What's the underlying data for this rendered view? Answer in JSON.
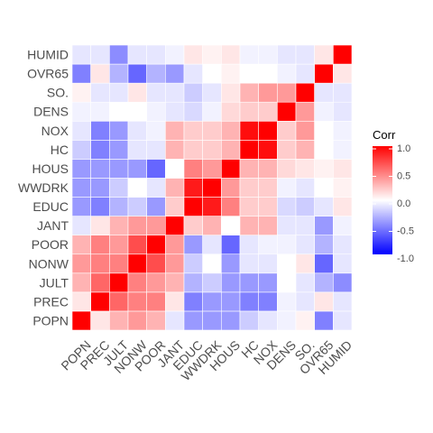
{
  "chart_data": {
    "type": "heatmap",
    "title": "",
    "xlabel": "",
    "ylabel": "",
    "variables": [
      "POPN",
      "PREC",
      "JULT",
      "NONW",
      "POOR",
      "JANT",
      "EDUC",
      "WWDRK",
      "HOUS",
      "HC",
      "NOX",
      "DENS",
      "SO.",
      "OVR65",
      "HUMID"
    ],
    "value_range": [
      -1,
      1
    ],
    "color_scale": {
      "low": "#0000ff",
      "mid": "#ffffff",
      "high": "#ff0000"
    },
    "grid": false,
    "legend": {
      "title": "Corr",
      "position": "right",
      "ticks": [
        "1.0",
        "0.5",
        "0.0",
        "-0.5",
        "-1.0"
      ]
    },
    "matrix": [
      [
        1.0,
        0.1,
        0.3,
        0.4,
        0.3,
        -0.1,
        -0.4,
        -0.4,
        -0.4,
        -0.2,
        -0.1,
        -0.05,
        0.05,
        -0.5,
        -0.1
      ],
      [
        0.1,
        1.0,
        0.6,
        0.5,
        0.5,
        0.1,
        -0.5,
        -0.4,
        -0.4,
        -0.5,
        -0.5,
        -0.05,
        -0.1,
        0.1,
        -0.1
      ],
      [
        0.3,
        0.6,
        1.0,
        0.5,
        0.4,
        0.3,
        -0.3,
        -0.2,
        -0.4,
        -0.4,
        -0.4,
        0.0,
        -0.1,
        -0.3,
        -0.45
      ],
      [
        0.4,
        0.5,
        0.5,
        1.0,
        0.7,
        0.4,
        -0.2,
        0.0,
        -0.4,
        -0.1,
        -0.1,
        0.0,
        0.1,
        -0.6,
        -0.1
      ],
      [
        0.3,
        0.5,
        0.4,
        0.7,
        1.0,
        0.4,
        -0.4,
        -0.1,
        -0.6,
        -0.1,
        -0.05,
        -0.05,
        -0.1,
        -0.3,
        -0.1
      ],
      [
        -0.1,
        0.1,
        0.3,
        0.4,
        0.4,
        1.0,
        0.2,
        0.3,
        0.0,
        0.3,
        0.3,
        -0.1,
        -0.1,
        -0.4,
        -0.05
      ],
      [
        -0.4,
        -0.5,
        -0.3,
        -0.2,
        -0.4,
        0.2,
        1.0,
        0.9,
        0.5,
        0.2,
        0.2,
        -0.15,
        -0.2,
        -0.1,
        0.1
      ],
      [
        -0.4,
        -0.4,
        -0.2,
        0.0,
        -0.1,
        0.3,
        0.9,
        1.0,
        0.4,
        0.2,
        0.2,
        -0.05,
        -0.1,
        0.0,
        0.05
      ],
      [
        -0.4,
        -0.4,
        -0.4,
        -0.4,
        -0.6,
        0.0,
        0.5,
        0.4,
        1.0,
        0.3,
        0.3,
        0.15,
        0.1,
        0.05,
        0.1
      ],
      [
        -0.2,
        -0.5,
        -0.4,
        -0.1,
        -0.1,
        0.3,
        0.2,
        0.2,
        0.3,
        1.0,
        0.95,
        0.2,
        0.3,
        0.0,
        -0.05
      ],
      [
        -0.1,
        -0.5,
        -0.4,
        -0.1,
        -0.05,
        0.3,
        0.2,
        0.2,
        0.3,
        0.95,
        1.0,
        0.2,
        0.4,
        0.0,
        -0.05
      ],
      [
        -0.05,
        -0.05,
        0.0,
        0.0,
        -0.05,
        -0.1,
        -0.15,
        -0.05,
        0.15,
        0.2,
        0.2,
        1.0,
        0.4,
        -0.05,
        -0.1
      ],
      [
        0.05,
        -0.1,
        -0.1,
        0.1,
        -0.1,
        -0.1,
        -0.2,
        -0.1,
        0.1,
        0.3,
        0.4,
        0.4,
        1.0,
        -0.1,
        -0.1
      ],
      [
        -0.5,
        0.1,
        -0.3,
        -0.6,
        -0.3,
        -0.4,
        -0.1,
        0.0,
        0.05,
        0.0,
        0.0,
        -0.05,
        -0.1,
        1.0,
        0.1
      ],
      [
        -0.1,
        -0.1,
        -0.45,
        -0.1,
        -0.1,
        -0.05,
        0.1,
        0.05,
        0.1,
        -0.05,
        -0.05,
        -0.1,
        -0.1,
        0.1,
        1.0
      ]
    ]
  }
}
